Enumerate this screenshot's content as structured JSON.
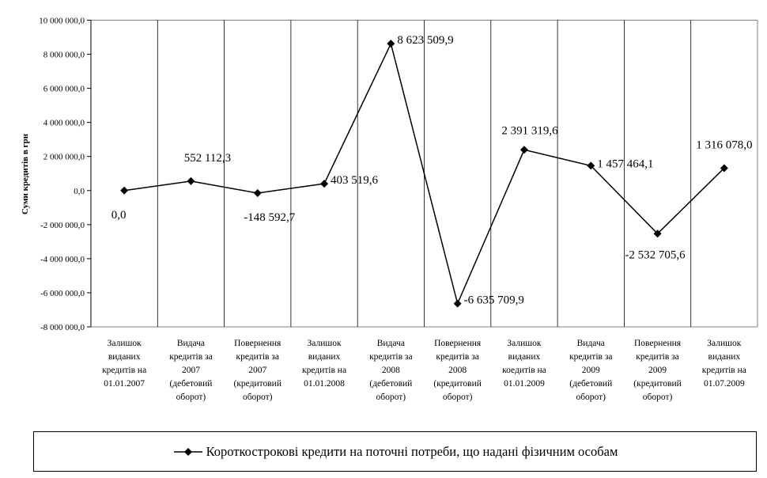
{
  "chart_data": {
    "type": "line",
    "title": "",
    "xlabel": "",
    "ylabel": "Суми кредитів в грн",
    "ylim": [
      -8000000,
      10000000
    ],
    "y_ticks": [
      "10 000 000,0",
      "8 000 000,0",
      "6 000 000,0",
      "4 000 000,0",
      "2 000 000,0",
      "0,0",
      "-2 000 000,0",
      "-4 000 000,0",
      "-6 000 000,0",
      "-8 000 000,0"
    ],
    "y_tick_values": [
      10000000,
      8000000,
      6000000,
      4000000,
      2000000,
      0,
      -2000000,
      -4000000,
      -6000000,
      -8000000
    ],
    "categories": [
      [
        "Залишок",
        "виданих",
        "кредитів на",
        "01.01.2007"
      ],
      [
        "Видача",
        "кредитів за",
        "2007",
        "(дебетовий",
        "оборот)"
      ],
      [
        "Повернення",
        "кредитів за",
        "2007",
        "(кредитовий",
        "оборот)"
      ],
      [
        "Залишок",
        "виданих",
        "кредитів на",
        "01.01.2008"
      ],
      [
        "Видача",
        "кредитів за",
        "2008",
        "(дебетовий",
        "оборот)"
      ],
      [
        "Повернення",
        "кредитів за",
        "2008",
        "(кредитовий",
        "оборот)"
      ],
      [
        "Залишок",
        "виданих",
        "коедитів на",
        "01.01.2009"
      ],
      [
        "Видача",
        "кредитів за",
        "2009",
        "(дебетовий",
        "оборот)"
      ],
      [
        "Повернення",
        "кредитів за",
        "2009",
        "(кредитовий",
        "оборот)"
      ],
      [
        "Залишок",
        "виданих",
        "кредитів на",
        "01.07.2009"
      ]
    ],
    "series": [
      {
        "name": "Короткострокові кредити на поточні потреби, що надані фізичним особам",
        "values": [
          0,
          552112.3,
          -148592.7,
          403519.6,
          8623509.9,
          -6635709.9,
          2391319.6,
          1457464.1,
          -2532705.6,
          1316078.0
        ],
        "labels": [
          "0,0",
          "552 112,3",
          "-148 592,7",
          "403 519,6",
          "8 623 509,9",
          "-6 635 709,9",
          "2 391 319,6",
          "1 457 464,1",
          "-2 532 705,6",
          "1 316 078,0"
        ]
      }
    ],
    "grid": "vertical category lines",
    "legend": "bottom",
    "marker": "diamond",
    "color": "#000000"
  }
}
